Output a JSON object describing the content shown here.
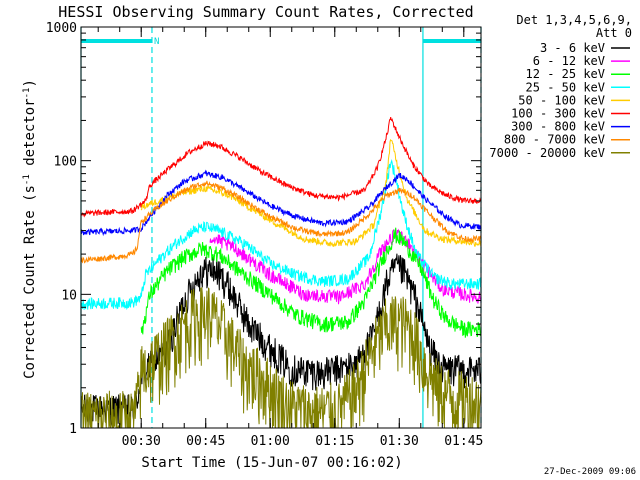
{
  "chart_data": {
    "type": "line",
    "title": "HESSI Observing Summary Count Rates, Corrected",
    "xlabel": "Start Time (15-Jun-07 00:16:02)",
    "ylabel_main": "Corrected Count Rate (s",
    "ylabel_sup1": "-1",
    "ylabel_mid": " detector",
    "ylabel_sup2": "-1",
    "ylabel_end": ")",
    "yscale": "log",
    "ylim": [
      1,
      1000
    ],
    "xlim_min": [
      16,
      109
    ],
    "x_ticks": [
      {
        "min": 30,
        "label": "00:30"
      },
      {
        "min": 45,
        "label": "00:45"
      },
      {
        "min": 60,
        "label": "01:00"
      },
      {
        "min": 75,
        "label": "01:15"
      },
      {
        "min": 90,
        "label": "01:30"
      },
      {
        "min": 105,
        "label": "01:45"
      }
    ],
    "y_ticks": [
      {
        "value": 1,
        "label": "1"
      },
      {
        "value": 10,
        "label": "10"
      },
      {
        "value": 100,
        "label": "100"
      },
      {
        "value": 1000,
        "label": "1000"
      }
    ],
    "legend_header": [
      "Det 1,3,4,5,6,9,",
      "Att 0"
    ],
    "legend_position": "right",
    "night_marker": "N",
    "night_intervals": [
      [
        16,
        32.5
      ],
      [
        95.5,
        109
      ]
    ],
    "timestamp": "27-Dec-2009 09:06",
    "series": [
      {
        "name": "3 - 6 keV",
        "color": "#000000",
        "noise": 0.14,
        "points": [
          [
            16,
            1.4
          ],
          [
            28,
            1.4
          ],
          [
            29,
            1.6
          ],
          [
            30,
            2.5
          ],
          [
            36,
            4
          ],
          [
            40,
            9
          ],
          [
            44,
            15
          ],
          [
            47,
            15.5
          ],
          [
            50,
            12
          ],
          [
            55,
            6
          ],
          [
            60,
            4
          ],
          [
            65,
            2.8
          ],
          [
            72,
            2.6
          ],
          [
            80,
            3
          ],
          [
            84,
            5
          ],
          [
            87,
            12
          ],
          [
            89,
            16
          ],
          [
            91,
            15
          ],
          [
            94,
            9
          ],
          [
            97,
            4
          ],
          [
            100,
            2.8
          ],
          [
            109,
            2.7
          ]
        ]
      },
      {
        "name": "6 - 12 keV",
        "color": "#ff00ff",
        "noise": 0.06,
        "points": [
          [
            46,
            27
          ],
          [
            52,
            22
          ],
          [
            60,
            14
          ],
          [
            68,
            10
          ],
          [
            76,
            9.5
          ],
          [
            82,
            12
          ],
          [
            86,
            22
          ],
          [
            89,
            28
          ],
          [
            92,
            25
          ],
          [
            96,
            16
          ],
          [
            100,
            11
          ],
          [
            105,
            10
          ],
          [
            109,
            9.5
          ]
        ]
      },
      {
        "name": "12 - 25 keV",
        "color": "#00ff00",
        "noise": 0.07,
        "points": [
          [
            30,
            5
          ],
          [
            32,
            10
          ],
          [
            36,
            15
          ],
          [
            40,
            19
          ],
          [
            44,
            22
          ],
          [
            48,
            20
          ],
          [
            54,
            14
          ],
          [
            60,
            10
          ],
          [
            66,
            7
          ],
          [
            72,
            6
          ],
          [
            78,
            6.2
          ],
          [
            82,
            9
          ],
          [
            86,
            18
          ],
          [
            89,
            28
          ],
          [
            91,
            25
          ],
          [
            95,
            16
          ],
          [
            98,
            9
          ],
          [
            101,
            6.5
          ],
          [
            105,
            5.5
          ],
          [
            109,
            5.5
          ]
        ]
      },
      {
        "name": "25 - 50 keV",
        "color": "#00ffff",
        "noise": 0.05,
        "points": [
          [
            16,
            8.5
          ],
          [
            28,
            8.7
          ],
          [
            30,
            9.5
          ],
          [
            31,
            14
          ],
          [
            34,
            18
          ],
          [
            38,
            24
          ],
          [
            42,
            30
          ],
          [
            45,
            32
          ],
          [
            48,
            30
          ],
          [
            54,
            24
          ],
          [
            60,
            17
          ],
          [
            66,
            14
          ],
          [
            72,
            12.5
          ],
          [
            78,
            13
          ],
          [
            83,
            19
          ],
          [
            86,
            45
          ],
          [
            88,
            100
          ],
          [
            89,
            80
          ],
          [
            91,
            40
          ],
          [
            94,
            20
          ],
          [
            98,
            13.5
          ],
          [
            102,
            12
          ],
          [
            109,
            12
          ]
        ]
      },
      {
        "name": "50 - 100 keV",
        "color": "#ffcc00",
        "noise": 0.03,
        "points": [
          [
            30,
            45
          ],
          [
            34,
            50
          ],
          [
            40,
            58
          ],
          [
            45,
            62
          ],
          [
            50,
            56
          ],
          [
            56,
            43
          ],
          [
            62,
            33
          ],
          [
            68,
            26
          ],
          [
            74,
            24
          ],
          [
            80,
            25
          ],
          [
            84,
            33
          ],
          [
            87,
            70
          ],
          [
            88,
            150
          ],
          [
            89.5,
            95
          ],
          [
            92,
            50
          ],
          [
            96,
            30
          ],
          [
            100,
            26
          ],
          [
            109,
            24
          ]
        ]
      },
      {
        "name": "100 - 300 keV",
        "color": "#ff0000",
        "noise": 0.025,
        "points": [
          [
            16,
            40
          ],
          [
            28,
            42
          ],
          [
            31,
            50
          ],
          [
            32,
            65
          ],
          [
            36,
            85
          ],
          [
            41,
            115
          ],
          [
            45,
            135
          ],
          [
            48,
            130
          ],
          [
            53,
            105
          ],
          [
            58,
            82
          ],
          [
            64,
            65
          ],
          [
            70,
            55
          ],
          [
            76,
            53
          ],
          [
            82,
            60
          ],
          [
            85,
            90
          ],
          [
            87,
            150
          ],
          [
            88,
            210
          ],
          [
            90,
            150
          ],
          [
            93,
            95
          ],
          [
            97,
            65
          ],
          [
            101,
            55
          ],
          [
            105,
            50
          ],
          [
            109,
            50
          ]
        ]
      },
      {
        "name": "300 - 800 keV",
        "color": "#0000ff",
        "noise": 0.025,
        "points": [
          [
            16,
            29
          ],
          [
            28,
            30
          ],
          [
            30,
            31
          ],
          [
            32,
            38
          ],
          [
            36,
            55
          ],
          [
            40,
            70
          ],
          [
            45,
            80
          ],
          [
            49,
            75
          ],
          [
            54,
            60
          ],
          [
            60,
            46
          ],
          [
            66,
            38
          ],
          [
            72,
            34
          ],
          [
            78,
            35
          ],
          [
            83,
            45
          ],
          [
            87,
            63
          ],
          [
            90,
            78
          ],
          [
            92,
            72
          ],
          [
            96,
            52
          ],
          [
            100,
            40
          ],
          [
            104,
            33
          ],
          [
            109,
            32
          ]
        ]
      },
      {
        "name": "800 - 7000 keV",
        "color": "#ff8800",
        "noise": 0.025,
        "points": [
          [
            16,
            18
          ],
          [
            24,
            19
          ],
          [
            28,
            20
          ],
          [
            29,
            22
          ],
          [
            30,
            35
          ],
          [
            34,
            45
          ],
          [
            38,
            55
          ],
          [
            42,
            64
          ],
          [
            45,
            68
          ],
          [
            49,
            62
          ],
          [
            54,
            50
          ],
          [
            60,
            38
          ],
          [
            66,
            31
          ],
          [
            72,
            28
          ],
          [
            78,
            29
          ],
          [
            83,
            40
          ],
          [
            87,
            55
          ],
          [
            90,
            60
          ],
          [
            93,
            55
          ],
          [
            97,
            40
          ],
          [
            101,
            30
          ],
          [
            105,
            26
          ],
          [
            109,
            26
          ]
        ]
      },
      {
        "name": "7000 - 20000 keV",
        "color": "#808000",
        "noise": 0.3,
        "points": [
          [
            16,
            1.2
          ],
          [
            28,
            1.2
          ],
          [
            29,
            1.5
          ],
          [
            30,
            2.7
          ],
          [
            34,
            3.5
          ],
          [
            38,
            5
          ],
          [
            42,
            7
          ],
          [
            46,
            7.5
          ],
          [
            50,
            5
          ],
          [
            54,
            3
          ],
          [
            58,
            2.4
          ],
          [
            64,
            1.5
          ],
          [
            70,
            1.3
          ],
          [
            76,
            1.4
          ],
          [
            80,
            2
          ],
          [
            84,
            4
          ],
          [
            87,
            6
          ],
          [
            90,
            6.5
          ],
          [
            93,
            5.5
          ],
          [
            96,
            3
          ],
          [
            99,
            2
          ],
          [
            103,
            1.7
          ],
          [
            109,
            1.6
          ]
        ]
      }
    ]
  }
}
